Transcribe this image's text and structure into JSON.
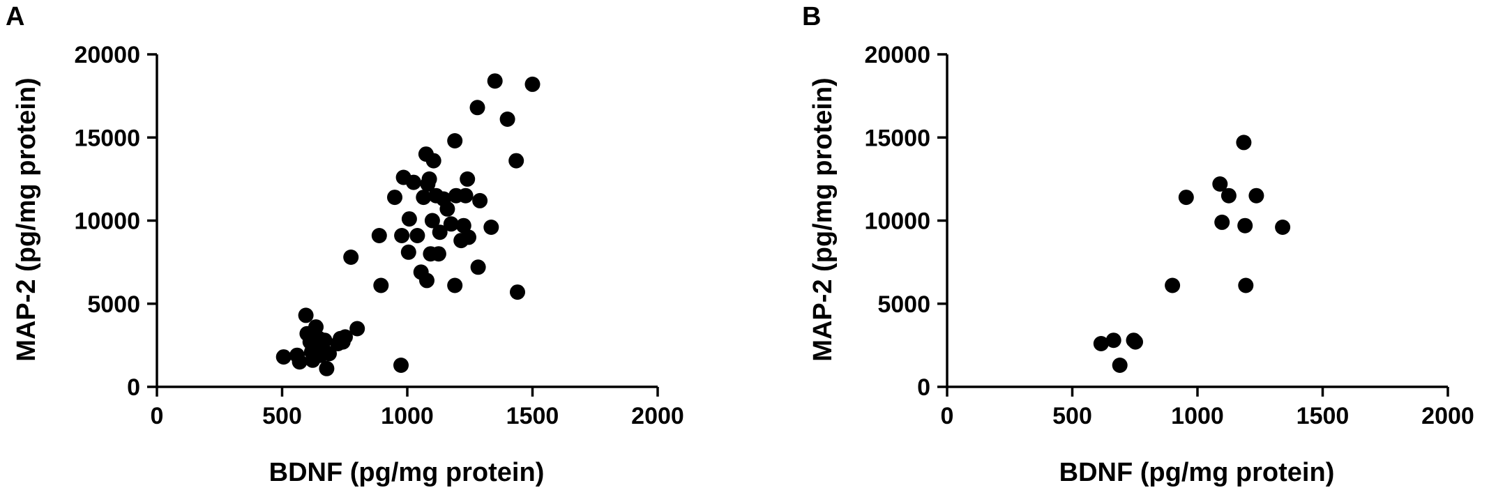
{
  "figure": {
    "marker_color": "#000000",
    "background": "#ffffff"
  },
  "chart_data": [
    {
      "type": "scatter",
      "panel": "A",
      "xlabel": "BDNF (pg/mg protein)",
      "ylabel": "MAP-2 (pg/mg protein)",
      "xlim": [
        0,
        2000
      ],
      "ylim": [
        0,
        20000
      ],
      "xticks": [
        0,
        500,
        1000,
        1500,
        2000
      ],
      "yticks": [
        0,
        5000,
        10000,
        15000,
        20000
      ],
      "grid": false,
      "points": [
        [
          506,
          1800
        ],
        [
          560,
          1900
        ],
        [
          570,
          1500
        ],
        [
          595,
          4300
        ],
        [
          600,
          3200
        ],
        [
          612,
          2700
        ],
        [
          618,
          2100
        ],
        [
          622,
          1600
        ],
        [
          630,
          3100
        ],
        [
          635,
          3600
        ],
        [
          640,
          2500
        ],
        [
          648,
          2900
        ],
        [
          655,
          1900
        ],
        [
          662,
          2300
        ],
        [
          670,
          2800
        ],
        [
          678,
          1100
        ],
        [
          688,
          2000
        ],
        [
          723,
          2600
        ],
        [
          733,
          2900
        ],
        [
          743,
          2700
        ],
        [
          752,
          3000
        ],
        [
          800,
          3500
        ],
        [
          775,
          7800
        ],
        [
          895,
          6100
        ],
        [
          888,
          9100
        ],
        [
          950,
          11400
        ],
        [
          975,
          1300
        ],
        [
          978,
          9100
        ],
        [
          985,
          12600
        ],
        [
          1005,
          8100
        ],
        [
          1008,
          10100
        ],
        [
          1025,
          12300
        ],
        [
          1040,
          9100
        ],
        [
          1055,
          6900
        ],
        [
          1065,
          11400
        ],
        [
          1075,
          14000
        ],
        [
          1078,
          6400
        ],
        [
          1082,
          12200
        ],
        [
          1088,
          12500
        ],
        [
          1093,
          8000
        ],
        [
          1100,
          10000
        ],
        [
          1105,
          13600
        ],
        [
          1115,
          11500
        ],
        [
          1125,
          8000
        ],
        [
          1130,
          9300
        ],
        [
          1145,
          11300
        ],
        [
          1160,
          10700
        ],
        [
          1175,
          9800
        ],
        [
          1190,
          14800
        ],
        [
          1190,
          6100
        ],
        [
          1195,
          11500
        ],
        [
          1215,
          8800
        ],
        [
          1225,
          9700
        ],
        [
          1233,
          11500
        ],
        [
          1240,
          12500
        ],
        [
          1245,
          9000
        ],
        [
          1280,
          16800
        ],
        [
          1283,
          7200
        ],
        [
          1290,
          11200
        ],
        [
          1335,
          9600
        ],
        [
          1350,
          18400
        ],
        [
          1400,
          16100
        ],
        [
          1435,
          13600
        ],
        [
          1440,
          5700
        ],
        [
          1500,
          18200
        ]
      ]
    },
    {
      "type": "scatter",
      "panel": "B",
      "xlabel": "BDNF (pg/mg protein)",
      "ylabel": "MAP-2 (pg/mg protein)",
      "xlim": [
        0,
        2000
      ],
      "ylim": [
        0,
        20000
      ],
      "xticks": [
        0,
        500,
        1000,
        1500,
        2000
      ],
      "yticks": [
        0,
        5000,
        10000,
        15000,
        20000
      ],
      "grid": false,
      "points": [
        [
          615,
          2600
        ],
        [
          665,
          2800
        ],
        [
          690,
          1300
        ],
        [
          745,
          2800
        ],
        [
          752,
          2700
        ],
        [
          900,
          6100
        ],
        [
          955,
          11400
        ],
        [
          1090,
          12200
        ],
        [
          1098,
          9900
        ],
        [
          1125,
          11500
        ],
        [
          1185,
          14700
        ],
        [
          1190,
          9700
        ],
        [
          1193,
          6100
        ],
        [
          1235,
          11500
        ],
        [
          1340,
          9600
        ]
      ]
    }
  ]
}
